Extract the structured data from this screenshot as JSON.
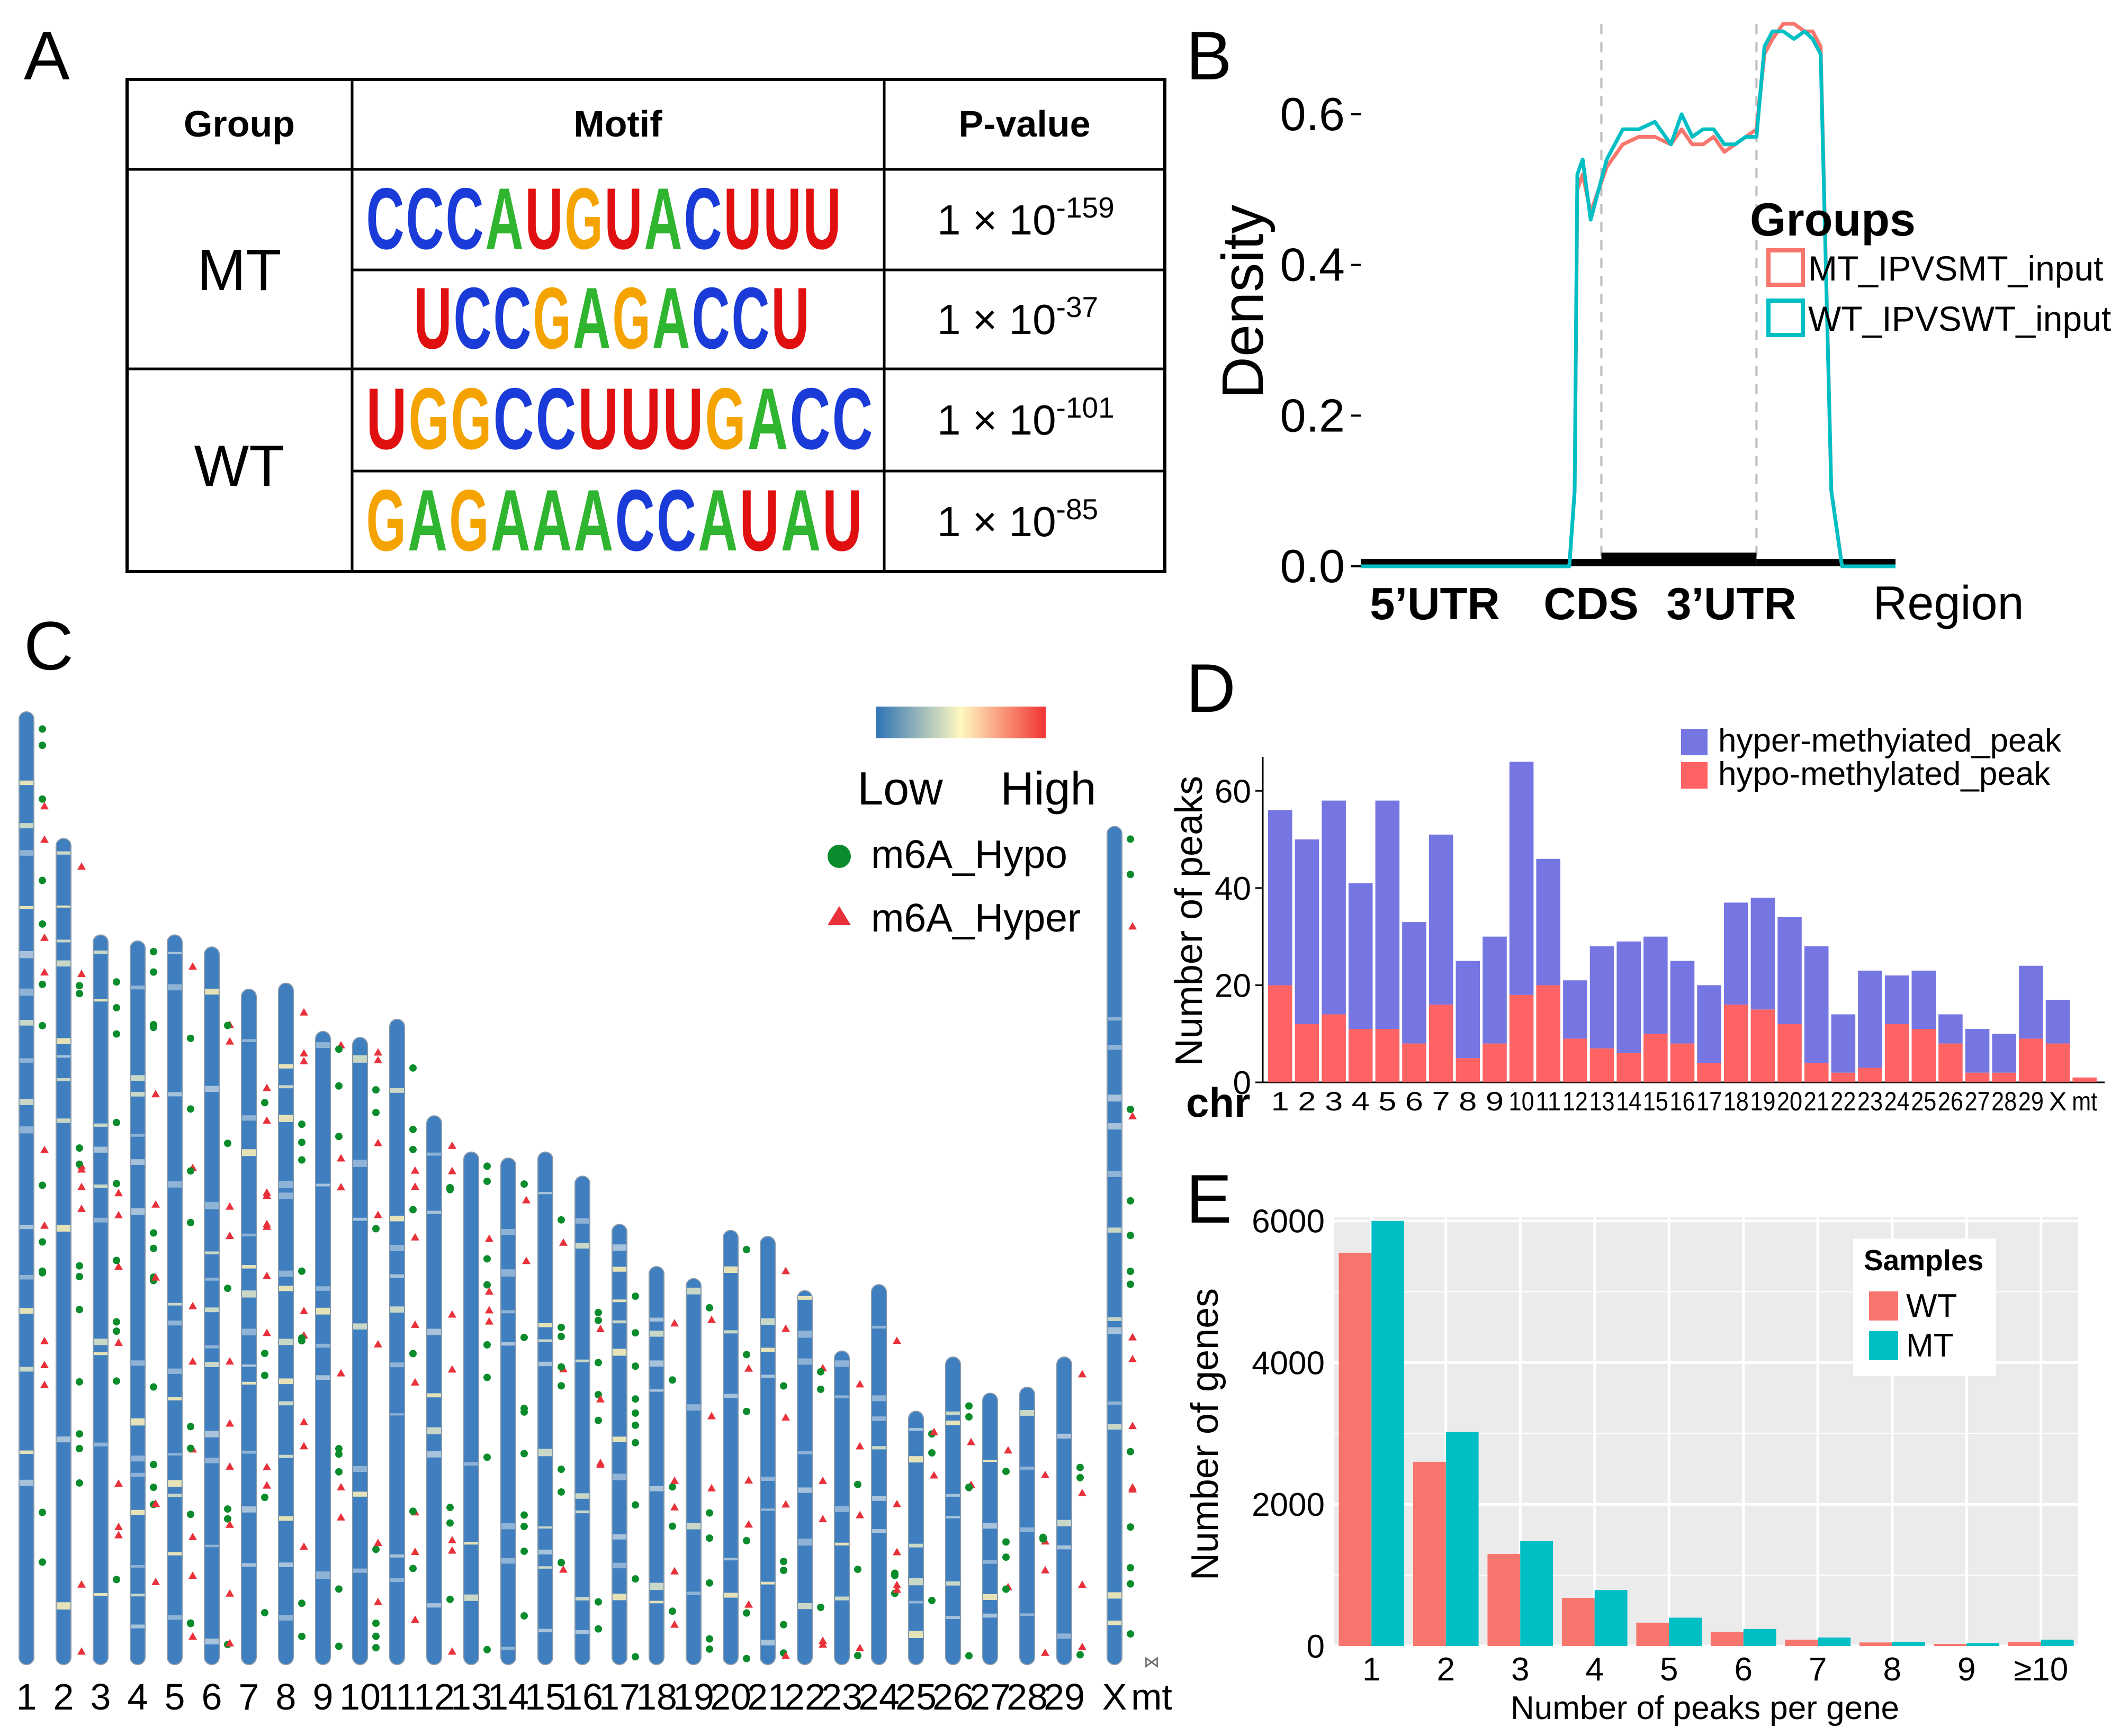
{
  "panel_labels": {
    "a": "A",
    "b": "B",
    "c": "C",
    "d": "D",
    "e": "E"
  },
  "colors": {
    "red": "#F8766D",
    "teal": "#00BFC4",
    "blue_bar": "#7676E3",
    "red_bar": "#FF6363",
    "hypo_dot": "#0B8C2C",
    "hyper_tri": "#E8313A",
    "chrom": "#3F7FC0",
    "motif_A": "#2FB52F",
    "motif_C": "#1A3BD8",
    "motif_G": "#F5A300",
    "motif_U": "#E01010"
  },
  "chart_data": [
    {
      "type": "table",
      "panel": "A",
      "headers": {
        "group": "Group",
        "motif": "Motif",
        "pvalue": "P-value"
      },
      "rows": [
        {
          "group": "MT",
          "motif": "CCCAUGUACUUU",
          "p_base": "1 × 10",
          "p_exp": "-159"
        },
        {
          "group": "",
          "motif": "UCCGAGACCU",
          "p_base": "1 × 10",
          "p_exp": "-37"
        },
        {
          "group": "WT",
          "motif": "UGGCCUUUGACC",
          "p_base": "1 × 10",
          "p_exp": "-101"
        },
        {
          "group": "",
          "motif": "GAGAAACCAUAU",
          "p_base": "1 × 10",
          "p_exp": "-85"
        }
      ]
    },
    {
      "type": "line",
      "panel": "B",
      "title": "",
      "xlabel": "Region",
      "ylabel": "Density",
      "ylim": [
        0,
        0.72
      ],
      "yticks": [
        "0.0",
        "0.2",
        "0.4",
        "0.6"
      ],
      "ytick_values": [
        0,
        0.2,
        0.4,
        0.6
      ],
      "regions": [
        "5’UTR",
        "CDS",
        "3’UTR"
      ],
      "legend_title": "Groups",
      "x": [
        0,
        1,
        1.2,
        1.4,
        1.6,
        1.8,
        2,
        2.1,
        2.3,
        2.6,
        3,
        3.3,
        3.6,
        3.9,
        4,
        4.05,
        4.15,
        4.3,
        4.6,
        4.9,
        5.2,
        5.5,
        5.8,
        6,
        6.2,
        6.4,
        6.6,
        6.8,
        7,
        7.2,
        7.4,
        7.55,
        7.7,
        7.9,
        8.1,
        8.3,
        8.45,
        8.6,
        8.8,
        9,
        9.4,
        10
      ],
      "series": [
        {
          "name": "MT_IPVSMT_input",
          "values": [
            0,
            0,
            0,
            0,
            0,
            0,
            0,
            0,
            0,
            0,
            0,
            0,
            0,
            0,
            0.1,
            0.5,
            0.52,
            0.47,
            0.53,
            0.56,
            0.57,
            0.57,
            0.56,
            0.58,
            0.56,
            0.56,
            0.57,
            0.55,
            0.56,
            0.57,
            0.58,
            0.68,
            0.7,
            0.72,
            0.72,
            0.71,
            0.71,
            0.69,
            0.1,
            0,
            0,
            0
          ]
        },
        {
          "name": "WT_IPVSWT_input",
          "values": [
            0,
            0,
            0,
            0,
            0,
            0,
            0,
            0,
            0,
            0,
            0,
            0,
            0,
            0,
            0.1,
            0.52,
            0.54,
            0.46,
            0.54,
            0.58,
            0.58,
            0.59,
            0.56,
            0.6,
            0.57,
            0.58,
            0.58,
            0.56,
            0.56,
            0.57,
            0.57,
            0.69,
            0.71,
            0.71,
            0.7,
            0.71,
            0.7,
            0.68,
            0.1,
            0,
            0,
            0
          ]
        }
      ]
    },
    {
      "type": "ideogram",
      "panel": "C",
      "chromosomes": [
        "1",
        "2",
        "3",
        "4",
        "5",
        "6",
        "7",
        "8",
        "9",
        "10",
        "11",
        "12",
        "13",
        "14",
        "15",
        "16",
        "17",
        "18",
        "19",
        "20",
        "21",
        "22",
        "23",
        "24",
        "25",
        "26",
        "27",
        "28",
        "29",
        "X",
        "mt"
      ],
      "lengths": [
        158,
        137,
        121,
        120,
        121,
        119,
        112,
        113,
        105,
        104,
        107,
        91,
        85,
        84,
        85,
        81,
        73,
        66,
        64,
        72,
        71,
        62,
        52,
        63,
        42,
        51,
        45,
        46,
        51,
        139,
        1
      ],
      "legend": {
        "low": "Low",
        "high": "High",
        "hypo": "m6A_Hypo",
        "hyper": "m6A_Hyper"
      }
    },
    {
      "type": "bar",
      "panel": "D",
      "stacked": true,
      "xlabel": "chr",
      "ylabel": "Number of peaks",
      "ylim": [
        0,
        67
      ],
      "yticks": [
        "0",
        "20",
        "40",
        "60"
      ],
      "ytick_values": [
        0,
        20,
        40,
        60
      ],
      "categories": [
        "1",
        "2",
        "3",
        "4",
        "5",
        "6",
        "7",
        "8",
        "9",
        "10",
        "11",
        "12",
        "13",
        "14",
        "15",
        "16",
        "17",
        "18",
        "19",
        "20",
        "21",
        "22",
        "23",
        "24",
        "25",
        "26",
        "27",
        "28",
        "29",
        "X",
        "mt"
      ],
      "series": [
        {
          "name": "hypo-methylated_peak",
          "values": [
            20,
            12,
            14,
            11,
            11,
            8,
            16,
            5,
            8,
            18,
            20,
            9,
            7,
            6,
            10,
            8,
            4,
            16,
            15,
            12,
            4,
            2,
            3,
            12,
            11,
            8,
            2,
            2,
            9,
            8,
            1
          ]
        },
        {
          "name": "hyper-methyiated_peak",
          "values": [
            36,
            38,
            44,
            30,
            47,
            25,
            35,
            20,
            22,
            48,
            26,
            12,
            21,
            23,
            20,
            17,
            16,
            21,
            23,
            22,
            24,
            12,
            20,
            10,
            12,
            6,
            9,
            8,
            15,
            9,
            0
          ]
        }
      ]
    },
    {
      "type": "bar",
      "panel": "E",
      "xlabel": "Number of peaks per gene",
      "ylabel": "Number of genes",
      "ylim": [
        0,
        6050
      ],
      "yticks": [
        "0",
        "2000",
        "4000",
        "6000"
      ],
      "ytick_values": [
        0,
        2000,
        4000,
        6000
      ],
      "legend_title": "Samples",
      "categories": [
        "1",
        "2",
        "3",
        "4",
        "5",
        "6",
        "7",
        "8",
        "9",
        "≥10"
      ],
      "series": [
        {
          "name": "WT",
          "values": [
            5550,
            2600,
            1300,
            680,
            330,
            200,
            90,
            50,
            30,
            60
          ]
        },
        {
          "name": "MT",
          "values": [
            6000,
            3020,
            1480,
            790,
            400,
            240,
            120,
            60,
            40,
            90
          ]
        }
      ]
    }
  ]
}
